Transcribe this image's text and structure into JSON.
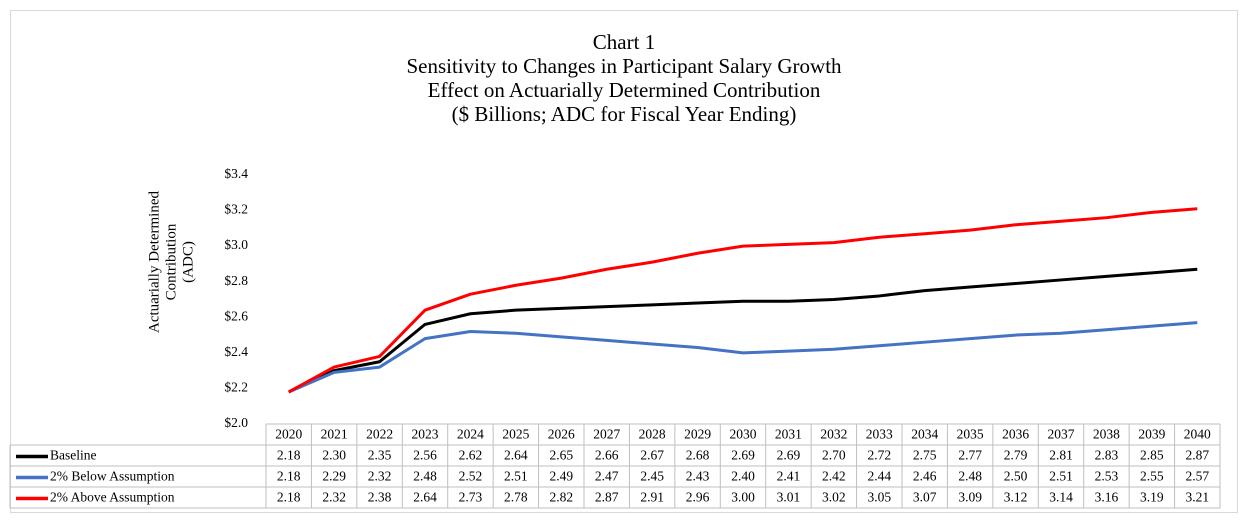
{
  "chart_data": {
    "type": "line",
    "title": [
      "Chart 1",
      "Sensitivity to Changes in Participant Salary Growth",
      "Effect on Actuarially Determined Contribution",
      "($ Billions;  ADC for Fiscal Year Ending)"
    ],
    "y_label": [
      "Actuarially Determined",
      "Contribution",
      "(ADC)"
    ],
    "categories": [
      "2020",
      "2021",
      "2022",
      "2023",
      "2024",
      "2025",
      "2026",
      "2027",
      "2028",
      "2029",
      "2030",
      "2031",
      "2032",
      "2033",
      "2034",
      "2035",
      "2036",
      "2037",
      "2038",
      "2039",
      "2040"
    ],
    "ylim": [
      2.0,
      3.4
    ],
    "yticks": [
      {
        "value": 2.0,
        "label": "$2.0"
      },
      {
        "value": 2.2,
        "label": "$2.2"
      },
      {
        "value": 2.4,
        "label": "$2.4"
      },
      {
        "value": 2.6,
        "label": "$2.6"
      },
      {
        "value": 2.8,
        "label": "$2.8"
      },
      {
        "value": 3.0,
        "label": "$3.0"
      },
      {
        "value": 3.2,
        "label": "$3.2"
      },
      {
        "value": 3.4,
        "label": "$3.4"
      }
    ],
    "grid": false,
    "series": [
      {
        "name": "Baseline",
        "color": "#000000",
        "values": [
          2.18,
          2.3,
          2.35,
          2.56,
          2.62,
          2.64,
          2.65,
          2.66,
          2.67,
          2.68,
          2.69,
          2.69,
          2.7,
          2.72,
          2.75,
          2.77,
          2.79,
          2.81,
          2.83,
          2.85,
          2.87
        ],
        "value_labels": [
          "2.18",
          "2.30",
          "2.35",
          "2.56",
          "2.62",
          "2.64",
          "2.65",
          "2.66",
          "2.67",
          "2.68",
          "2.69",
          "2.69",
          "2.70",
          "2.72",
          "2.75",
          "2.77",
          "2.79",
          "2.81",
          "2.83",
          "2.85",
          "2.87"
        ]
      },
      {
        "name": "2% Below Assumption",
        "color": "#4472c4",
        "values": [
          2.18,
          2.29,
          2.32,
          2.48,
          2.52,
          2.51,
          2.49,
          2.47,
          2.45,
          2.43,
          2.4,
          2.41,
          2.42,
          2.44,
          2.46,
          2.48,
          2.5,
          2.51,
          2.53,
          2.55,
          2.57
        ],
        "value_labels": [
          "2.18",
          "2.29",
          "2.32",
          "2.48",
          "2.52",
          "2.51",
          "2.49",
          "2.47",
          "2.45",
          "2.43",
          "2.40",
          "2.41",
          "2.42",
          "2.44",
          "2.46",
          "2.48",
          "2.50",
          "2.51",
          "2.53",
          "2.55",
          "2.57"
        ]
      },
      {
        "name": "2% Above Assumption",
        "color": "#ff0000",
        "values": [
          2.18,
          2.32,
          2.38,
          2.64,
          2.73,
          2.78,
          2.82,
          2.87,
          2.91,
          2.96,
          3.0,
          3.01,
          3.02,
          3.05,
          3.07,
          3.09,
          3.12,
          3.14,
          3.16,
          3.19,
          3.21
        ],
        "value_labels": [
          "2.18",
          "2.32",
          "2.38",
          "2.64",
          "2.73",
          "2.78",
          "2.82",
          "2.87",
          "2.91",
          "2.96",
          "3.00",
          "3.01",
          "3.02",
          "3.05",
          "3.07",
          "3.09",
          "3.12",
          "3.14",
          "3.16",
          "3.19",
          "3.21"
        ]
      }
    ]
  }
}
